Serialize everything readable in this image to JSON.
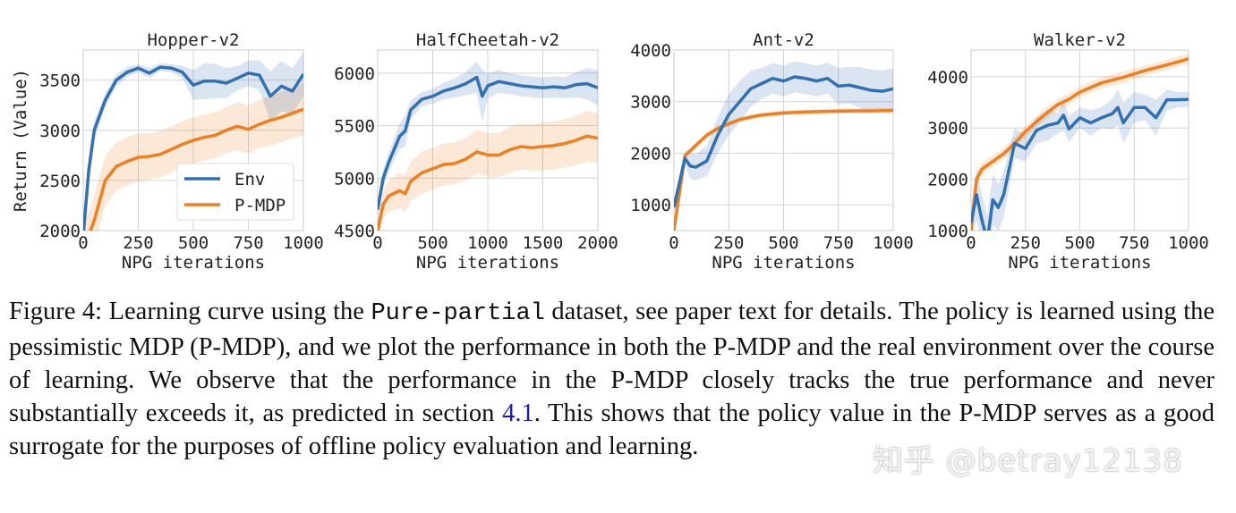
{
  "colors": {
    "env": "#3170b3",
    "pmdp": "#f0801f",
    "grid": "#d4d4d4"
  },
  "legend": {
    "env": "Env",
    "pmdp": "P-MDP"
  },
  "chart_data": [
    {
      "type": "line",
      "title": "Hopper-v2",
      "xlabel": "NPG iterations",
      "ylabel": "Return (Value)",
      "xlim": [
        0,
        1000
      ],
      "ylim": [
        2000,
        3800
      ],
      "xticks": [
        0,
        250,
        500,
        750,
        1000
      ],
      "yticks": [
        2000,
        2500,
        3000,
        3500
      ],
      "grid": true,
      "legend_placement": "lower-right",
      "series": [
        {
          "name": "Env",
          "x": [
            0,
            25,
            50,
            100,
            150,
            200,
            250,
            300,
            350,
            400,
            450,
            500,
            550,
            600,
            650,
            700,
            750,
            800,
            850,
            900,
            950,
            1000
          ],
          "y": [
            1950,
            2600,
            3000,
            3300,
            3500,
            3580,
            3620,
            3570,
            3630,
            3620,
            3580,
            3450,
            3490,
            3490,
            3470,
            3520,
            3570,
            3550,
            3340,
            3440,
            3390,
            3560
          ],
          "band": [
            150,
            120,
            90,
            70,
            60,
            50,
            40,
            50,
            40,
            40,
            60,
            150,
            180,
            170,
            150,
            120,
            130,
            150,
            250,
            250,
            230,
            220
          ]
        },
        {
          "name": "P-MDP",
          "x": [
            0,
            50,
            100,
            150,
            200,
            250,
            300,
            350,
            400,
            450,
            500,
            550,
            600,
            650,
            700,
            750,
            800,
            850,
            900,
            950,
            1000
          ],
          "y": [
            1800,
            2100,
            2500,
            2640,
            2690,
            2730,
            2740,
            2760,
            2810,
            2860,
            2900,
            2930,
            2950,
            3000,
            3040,
            3010,
            3060,
            3100,
            3130,
            3170,
            3210
          ],
          "band": [
            250,
            250,
            250,
            240,
            240,
            240,
            230,
            230,
            230,
            230,
            230,
            230,
            230,
            230,
            240,
            240,
            240,
            250,
            250,
            250,
            260
          ]
        }
      ]
    },
    {
      "type": "line",
      "title": "HalfCheetah-v2",
      "xlabel": "NPG iterations",
      "ylabel": "",
      "xlim": [
        0,
        2000
      ],
      "ylim": [
        4500,
        6220
      ],
      "xticks": [
        0,
        500,
        1000,
        1500,
        2000
      ],
      "yticks": [
        4500,
        5000,
        5500,
        6000
      ],
      "grid": true,
      "series": [
        {
          "name": "Env",
          "x": [
            0,
            50,
            100,
            200,
            250,
            300,
            400,
            500,
            600,
            700,
            800,
            900,
            950,
            1000,
            1100,
            1200,
            1300,
            1400,
            1500,
            1600,
            1700,
            1800,
            1900,
            2000
          ],
          "y": [
            4700,
            5000,
            5150,
            5400,
            5450,
            5650,
            5750,
            5780,
            5830,
            5860,
            5900,
            5960,
            5780,
            5880,
            5920,
            5900,
            5880,
            5870,
            5860,
            5870,
            5860,
            5890,
            5900,
            5860
          ],
          "band": [
            80,
            80,
            90,
            120,
            150,
            90,
            70,
            70,
            80,
            90,
            110,
            150,
            250,
            120,
            110,
            100,
            100,
            100,
            100,
            100,
            100,
            120,
            150,
            170
          ]
        },
        {
          "name": "P-MDP",
          "x": [
            0,
            50,
            100,
            200,
            250,
            300,
            400,
            500,
            600,
            700,
            800,
            900,
            1000,
            1100,
            1200,
            1300,
            1400,
            1500,
            1600,
            1700,
            1800,
            1900,
            2000
          ],
          "y": [
            4500,
            4750,
            4830,
            4880,
            4850,
            4970,
            5050,
            5090,
            5130,
            5140,
            5180,
            5250,
            5220,
            5220,
            5270,
            5300,
            5290,
            5300,
            5310,
            5330,
            5360,
            5400,
            5380
          ],
          "band": [
            100,
            120,
            150,
            170,
            180,
            190,
            200,
            200,
            200,
            200,
            200,
            210,
            210,
            210,
            220,
            220,
            220,
            230,
            230,
            230,
            240,
            240,
            240
          ]
        }
      ]
    },
    {
      "type": "line",
      "title": "Ant-v2",
      "xlabel": "NPG iterations",
      "ylabel": "",
      "xlim": [
        0,
        1000
      ],
      "ylim": [
        500,
        4000
      ],
      "xticks": [
        0,
        250,
        500,
        750,
        1000
      ],
      "yticks": [
        1000,
        2000,
        3000,
        4000
      ],
      "grid": true,
      "series": [
        {
          "name": "Env",
          "x": [
            0,
            50,
            75,
            100,
            150,
            200,
            250,
            300,
            350,
            400,
            450,
            500,
            550,
            600,
            650,
            700,
            750,
            800,
            850,
            900,
            950,
            1000
          ],
          "y": [
            950,
            1900,
            1750,
            1730,
            1850,
            2350,
            2750,
            3000,
            3250,
            3350,
            3450,
            3400,
            3480,
            3450,
            3400,
            3450,
            3300,
            3320,
            3270,
            3220,
            3200,
            3250
          ],
          "band": [
            100,
            150,
            250,
            250,
            300,
            350,
            400,
            400,
            350,
            300,
            300,
            300,
            300,
            300,
            300,
            300,
            350,
            350,
            400,
            400,
            400,
            400
          ]
        },
        {
          "name": "P-MDP",
          "x": [
            0,
            50,
            100,
            150,
            200,
            250,
            300,
            350,
            400,
            500,
            600,
            700,
            800,
            900,
            1000
          ],
          "y": [
            500,
            1950,
            2150,
            2350,
            2480,
            2570,
            2650,
            2700,
            2740,
            2780,
            2800,
            2810,
            2820,
            2820,
            2830
          ],
          "band": [
            60,
            60,
            60,
            60,
            50,
            50,
            50,
            50,
            50,
            50,
            50,
            50,
            50,
            50,
            50
          ]
        }
      ]
    },
    {
      "type": "line",
      "title": "Walker-v2",
      "xlabel": "NPG iterations",
      "ylabel": "",
      "xlim": [
        0,
        1000
      ],
      "ylim": [
        1000,
        4520
      ],
      "xticks": [
        0,
        250,
        500,
        750,
        1000
      ],
      "yticks": [
        1000,
        2000,
        3000,
        4000
      ],
      "grid": true,
      "series": [
        {
          "name": "Env",
          "x": [
            0,
            25,
            50,
            75,
            100,
            125,
            150,
            200,
            250,
            300,
            350,
            400,
            425,
            450,
            500,
            550,
            600,
            650,
            675,
            700,
            750,
            800,
            850,
            900,
            950,
            1000
          ],
          "y": [
            1150,
            1700,
            1200,
            800,
            1600,
            1450,
            1700,
            2700,
            2600,
            2950,
            3050,
            3100,
            3250,
            2980,
            3200,
            3100,
            3200,
            3280,
            3400,
            3100,
            3400,
            3400,
            3200,
            3550,
            3550,
            3560
          ],
          "band": [
            300,
            500,
            500,
            500,
            500,
            450,
            450,
            300,
            250,
            250,
            300,
            200,
            300,
            250,
            200,
            250,
            200,
            300,
            350,
            400,
            300,
            250,
            350,
            200,
            150,
            150
          ]
        },
        {
          "name": "P-MDP",
          "x": [
            0,
            25,
            50,
            100,
            150,
            200,
            250,
            300,
            350,
            400,
            450,
            500,
            600,
            700,
            800,
            900,
            1000
          ],
          "y": [
            1000,
            2000,
            2200,
            2350,
            2500,
            2700,
            2930,
            3120,
            3300,
            3460,
            3560,
            3700,
            3880,
            3990,
            4120,
            4230,
            4350
          ],
          "band": [
            150,
            150,
            120,
            110,
            110,
            110,
            110,
            110,
            110,
            110,
            110,
            110,
            110,
            110,
            100,
            100,
            100
          ]
        }
      ]
    }
  ],
  "caption": {
    "label": "Figure 4:",
    "t1": " Learning curve using the ",
    "code": "Pure-partial",
    "t2": " dataset, see paper text for details. The policy is learned using the pessimistic MDP (P-MDP), and we plot the performance in both the P-MDP and the real environment over the course of learning. We observe that the performance in the P-MDP closely tracks the true performance and never substantially exceeds it, as predicted in section ",
    "ref": "4.1",
    "t3": ". This shows that the policy value in the P-MDP serves as a good surrogate for the purposes of offline policy evaluation and learning."
  },
  "watermark": "知乎 @betray12138"
}
